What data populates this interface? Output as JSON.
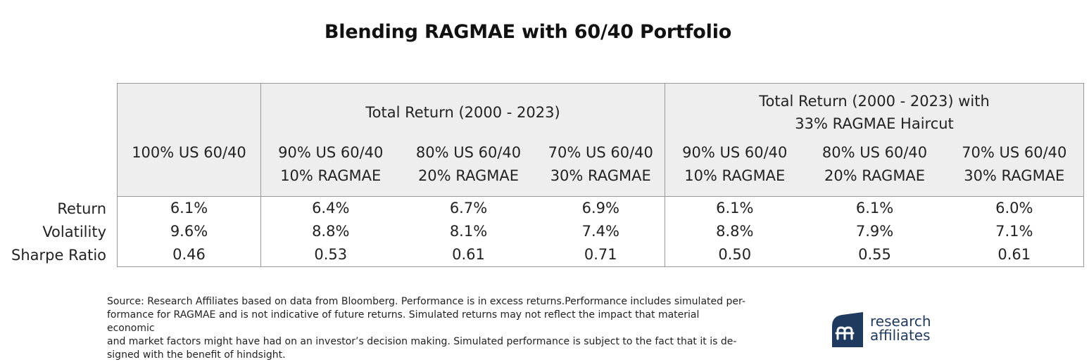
{
  "title": "Blending RAGMAE with 60/40 Portfolio",
  "table": {
    "group_headers": [
      {
        "label": "Total Return (2000 - 2023)"
      },
      {
        "label_line1": "Total Return (2000 - 2023) with",
        "label_line2": "33% RAGMAE Haircut"
      }
    ],
    "columns": [
      {
        "line1": "100% US 60/40",
        "line2": ""
      },
      {
        "line1": "90% US 60/40",
        "line2": "10% RAGMAE"
      },
      {
        "line1": "80% US 60/40",
        "line2": "20% RAGMAE"
      },
      {
        "line1": "70% US 60/40",
        "line2": "30% RAGMAE"
      },
      {
        "line1": "90% US 60/40",
        "line2": "10% RAGMAE"
      },
      {
        "line1": "80% US 60/40",
        "line2": "20% RAGMAE"
      },
      {
        "line1": "70% US 60/40",
        "line2": "30% RAGMAE"
      }
    ],
    "rows": [
      {
        "label": "Return",
        "values": [
          "6.1%",
          "6.4%",
          "6.7%",
          "6.9%",
          "6.1%",
          "6.1%",
          "6.0%"
        ]
      },
      {
        "label": "Volatility",
        "values": [
          "9.6%",
          "8.8%",
          "8.1%",
          "7.4%",
          "8.8%",
          "7.9%",
          "7.1%"
        ]
      },
      {
        "label": "Sharpe Ratio",
        "values": [
          "0.46",
          "0.53",
          "0.61",
          "0.71",
          "0.50",
          "0.55",
          "0.61"
        ]
      }
    ]
  },
  "source_note": {
    "lines": [
      "Source: Research Affiliates based on data from Bloomberg. Performance is in excess returns.Performance includes simulated per-",
      "formance for RAGMAE and is not indicative of future returns. Simulated returns may not reflect the impact that material economic",
      "and market factors might have had on an investor’s decision making. Simulated performance is subject to the fact that it is de-",
      "signed with the benefit of hindsight."
    ]
  },
  "logo": {
    "line1": "research",
    "line2": "affiliates",
    "mark_color": "#1e3a5f",
    "icon": "research-affiliates-logo-icon"
  }
}
